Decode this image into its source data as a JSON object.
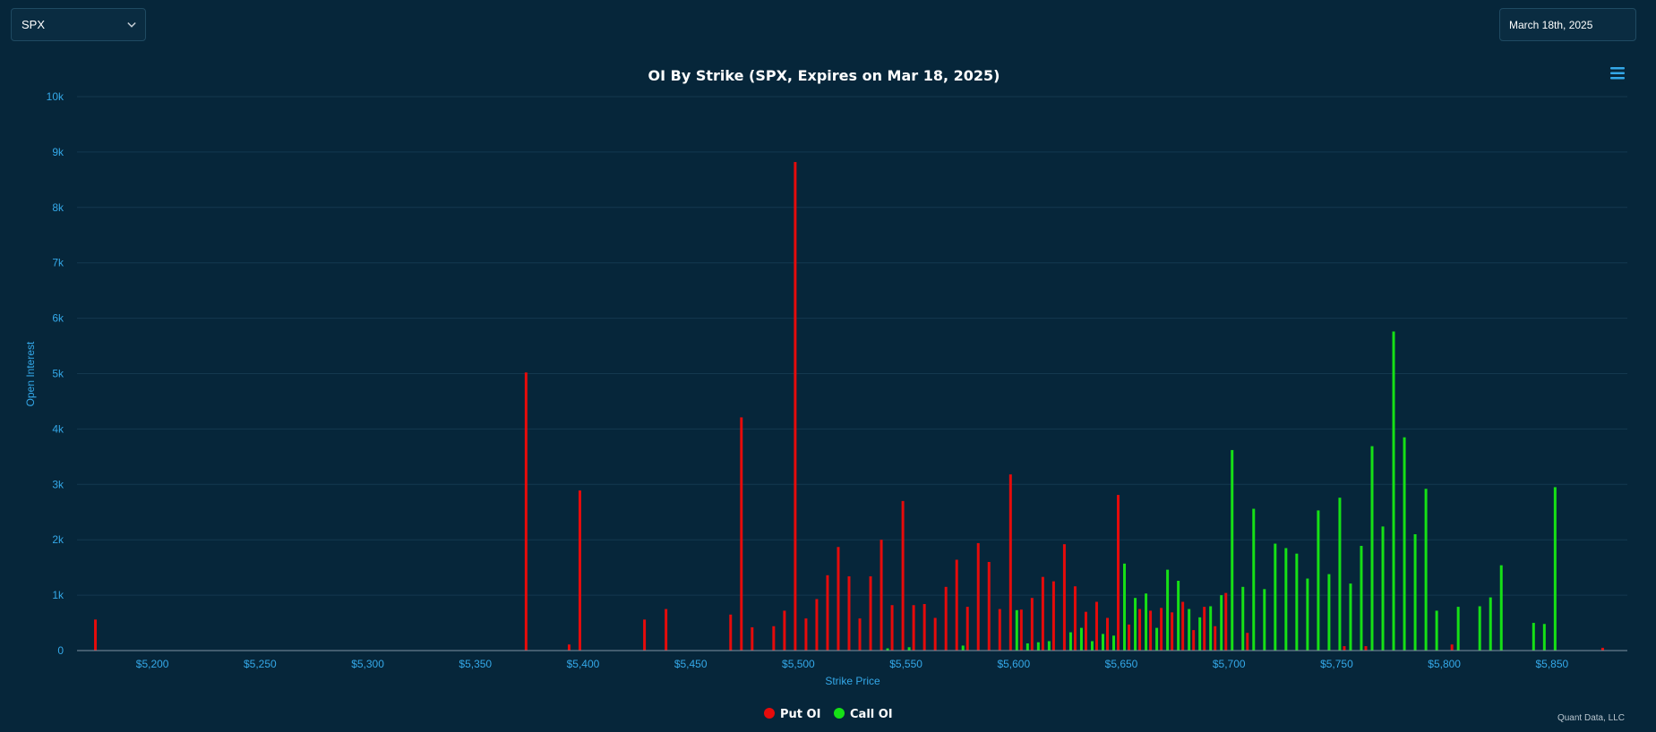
{
  "controls": {
    "ticker_value": "SPX",
    "date_value": "March 18th, 2025"
  },
  "menu_icon": "hamburger-menu-icon",
  "credit": "Quant Data, LLC",
  "colors": {
    "put": "#e60b0b",
    "call": "#16e016",
    "background": "#06263a"
  },
  "chart_data": {
    "type": "bar",
    "title": "OI By Strike (SPX, Expires on Mar 18, 2025)",
    "xlabel": "Strike Price",
    "ylabel": "Open Interest",
    "xlim": [
      5165,
      5885
    ],
    "ylim": [
      0,
      10000
    ],
    "x_ticks": [
      {
        "v": 5200,
        "label": "$5,200"
      },
      {
        "v": 5250,
        "label": "$5,250"
      },
      {
        "v": 5300,
        "label": "$5,300"
      },
      {
        "v": 5350,
        "label": "$5,350"
      },
      {
        "v": 5400,
        "label": "$5,400"
      },
      {
        "v": 5450,
        "label": "$5,450"
      },
      {
        "v": 5500,
        "label": "$5,500"
      },
      {
        "v": 5550,
        "label": "$5,550"
      },
      {
        "v": 5600,
        "label": "$5,600"
      },
      {
        "v": 5650,
        "label": "$5,650"
      },
      {
        "v": 5700,
        "label": "$5,700"
      },
      {
        "v": 5750,
        "label": "$5,750"
      },
      {
        "v": 5800,
        "label": "$5,800"
      },
      {
        "v": 5850,
        "label": "$5,850"
      }
    ],
    "y_ticks": [
      {
        "v": 0,
        "label": "0"
      },
      {
        "v": 1000,
        "label": "1k"
      },
      {
        "v": 2000,
        "label": "2k"
      },
      {
        "v": 3000,
        "label": "3k"
      },
      {
        "v": 4000,
        "label": "4k"
      },
      {
        "v": 5000,
        "label": "5k"
      },
      {
        "v": 6000,
        "label": "6k"
      },
      {
        "v": 7000,
        "label": "7k"
      },
      {
        "v": 8000,
        "label": "8k"
      },
      {
        "v": 9000,
        "label": "9k"
      },
      {
        "v": 10000,
        "label": "10k"
      }
    ],
    "grid": true,
    "legend_position": "bottom-center",
    "series": [
      {
        "name": "Put OI",
        "color": "#e60b0b",
        "points": [
          [
            5175,
            560
          ],
          [
            5375,
            5020
          ],
          [
            5395,
            110
          ],
          [
            5400,
            2890
          ],
          [
            5430,
            560
          ],
          [
            5440,
            750
          ],
          [
            5470,
            650
          ],
          [
            5475,
            4210
          ],
          [
            5480,
            420
          ],
          [
            5490,
            440
          ],
          [
            5495,
            720
          ],
          [
            5500,
            8820
          ],
          [
            5505,
            580
          ],
          [
            5510,
            930
          ],
          [
            5515,
            1360
          ],
          [
            5520,
            1870
          ],
          [
            5525,
            1340
          ],
          [
            5530,
            580
          ],
          [
            5535,
            1340
          ],
          [
            5540,
            2000
          ],
          [
            5545,
            820
          ],
          [
            5550,
            2700
          ],
          [
            5555,
            820
          ],
          [
            5560,
            840
          ],
          [
            5565,
            590
          ],
          [
            5570,
            1150
          ],
          [
            5575,
            1640
          ],
          [
            5580,
            790
          ],
          [
            5585,
            1940
          ],
          [
            5590,
            1600
          ],
          [
            5595,
            750
          ],
          [
            5600,
            3180
          ],
          [
            5605,
            740
          ],
          [
            5610,
            950
          ],
          [
            5615,
            1330
          ],
          [
            5620,
            1250
          ],
          [
            5625,
            1920
          ],
          [
            5630,
            1160
          ],
          [
            5635,
            700
          ],
          [
            5640,
            880
          ],
          [
            5645,
            590
          ],
          [
            5650,
            2810
          ],
          [
            5655,
            470
          ],
          [
            5660,
            750
          ],
          [
            5665,
            720
          ],
          [
            5670,
            770
          ],
          [
            5675,
            690
          ],
          [
            5680,
            880
          ],
          [
            5685,
            370
          ],
          [
            5690,
            790
          ],
          [
            5695,
            440
          ],
          [
            5700,
            1040
          ],
          [
            5710,
            320
          ],
          [
            5755,
            80
          ],
          [
            5765,
            80
          ],
          [
            5805,
            110
          ],
          [
            5875,
            50
          ]
        ]
      },
      {
        "name": "Call OI",
        "color": "#16e016",
        "points": [
          [
            5540,
            40
          ],
          [
            5550,
            60
          ],
          [
            5575,
            90
          ],
          [
            5600,
            730
          ],
          [
            5605,
            130
          ],
          [
            5610,
            150
          ],
          [
            5615,
            170
          ],
          [
            5625,
            330
          ],
          [
            5630,
            410
          ],
          [
            5635,
            170
          ],
          [
            5640,
            300
          ],
          [
            5645,
            270
          ],
          [
            5650,
            1570
          ],
          [
            5655,
            950
          ],
          [
            5660,
            1030
          ],
          [
            5665,
            410
          ],
          [
            5670,
            1460
          ],
          [
            5675,
            1260
          ],
          [
            5680,
            750
          ],
          [
            5685,
            600
          ],
          [
            5690,
            800
          ],
          [
            5695,
            1000
          ],
          [
            5700,
            3620
          ],
          [
            5705,
            1150
          ],
          [
            5710,
            2560
          ],
          [
            5715,
            1110
          ],
          [
            5720,
            1930
          ],
          [
            5725,
            1850
          ],
          [
            5730,
            1750
          ],
          [
            5735,
            1300
          ],
          [
            5740,
            2530
          ],
          [
            5745,
            1380
          ],
          [
            5750,
            2760
          ],
          [
            5755,
            1210
          ],
          [
            5760,
            1890
          ],
          [
            5765,
            3690
          ],
          [
            5770,
            2240
          ],
          [
            5775,
            5760
          ],
          [
            5780,
            3850
          ],
          [
            5785,
            2100
          ],
          [
            5790,
            2920
          ],
          [
            5795,
            720
          ],
          [
            5805,
            790
          ],
          [
            5815,
            800
          ],
          [
            5820,
            960
          ],
          [
            5825,
            1540
          ],
          [
            5840,
            500
          ],
          [
            5845,
            480
          ],
          [
            5850,
            2950
          ]
        ]
      }
    ]
  }
}
